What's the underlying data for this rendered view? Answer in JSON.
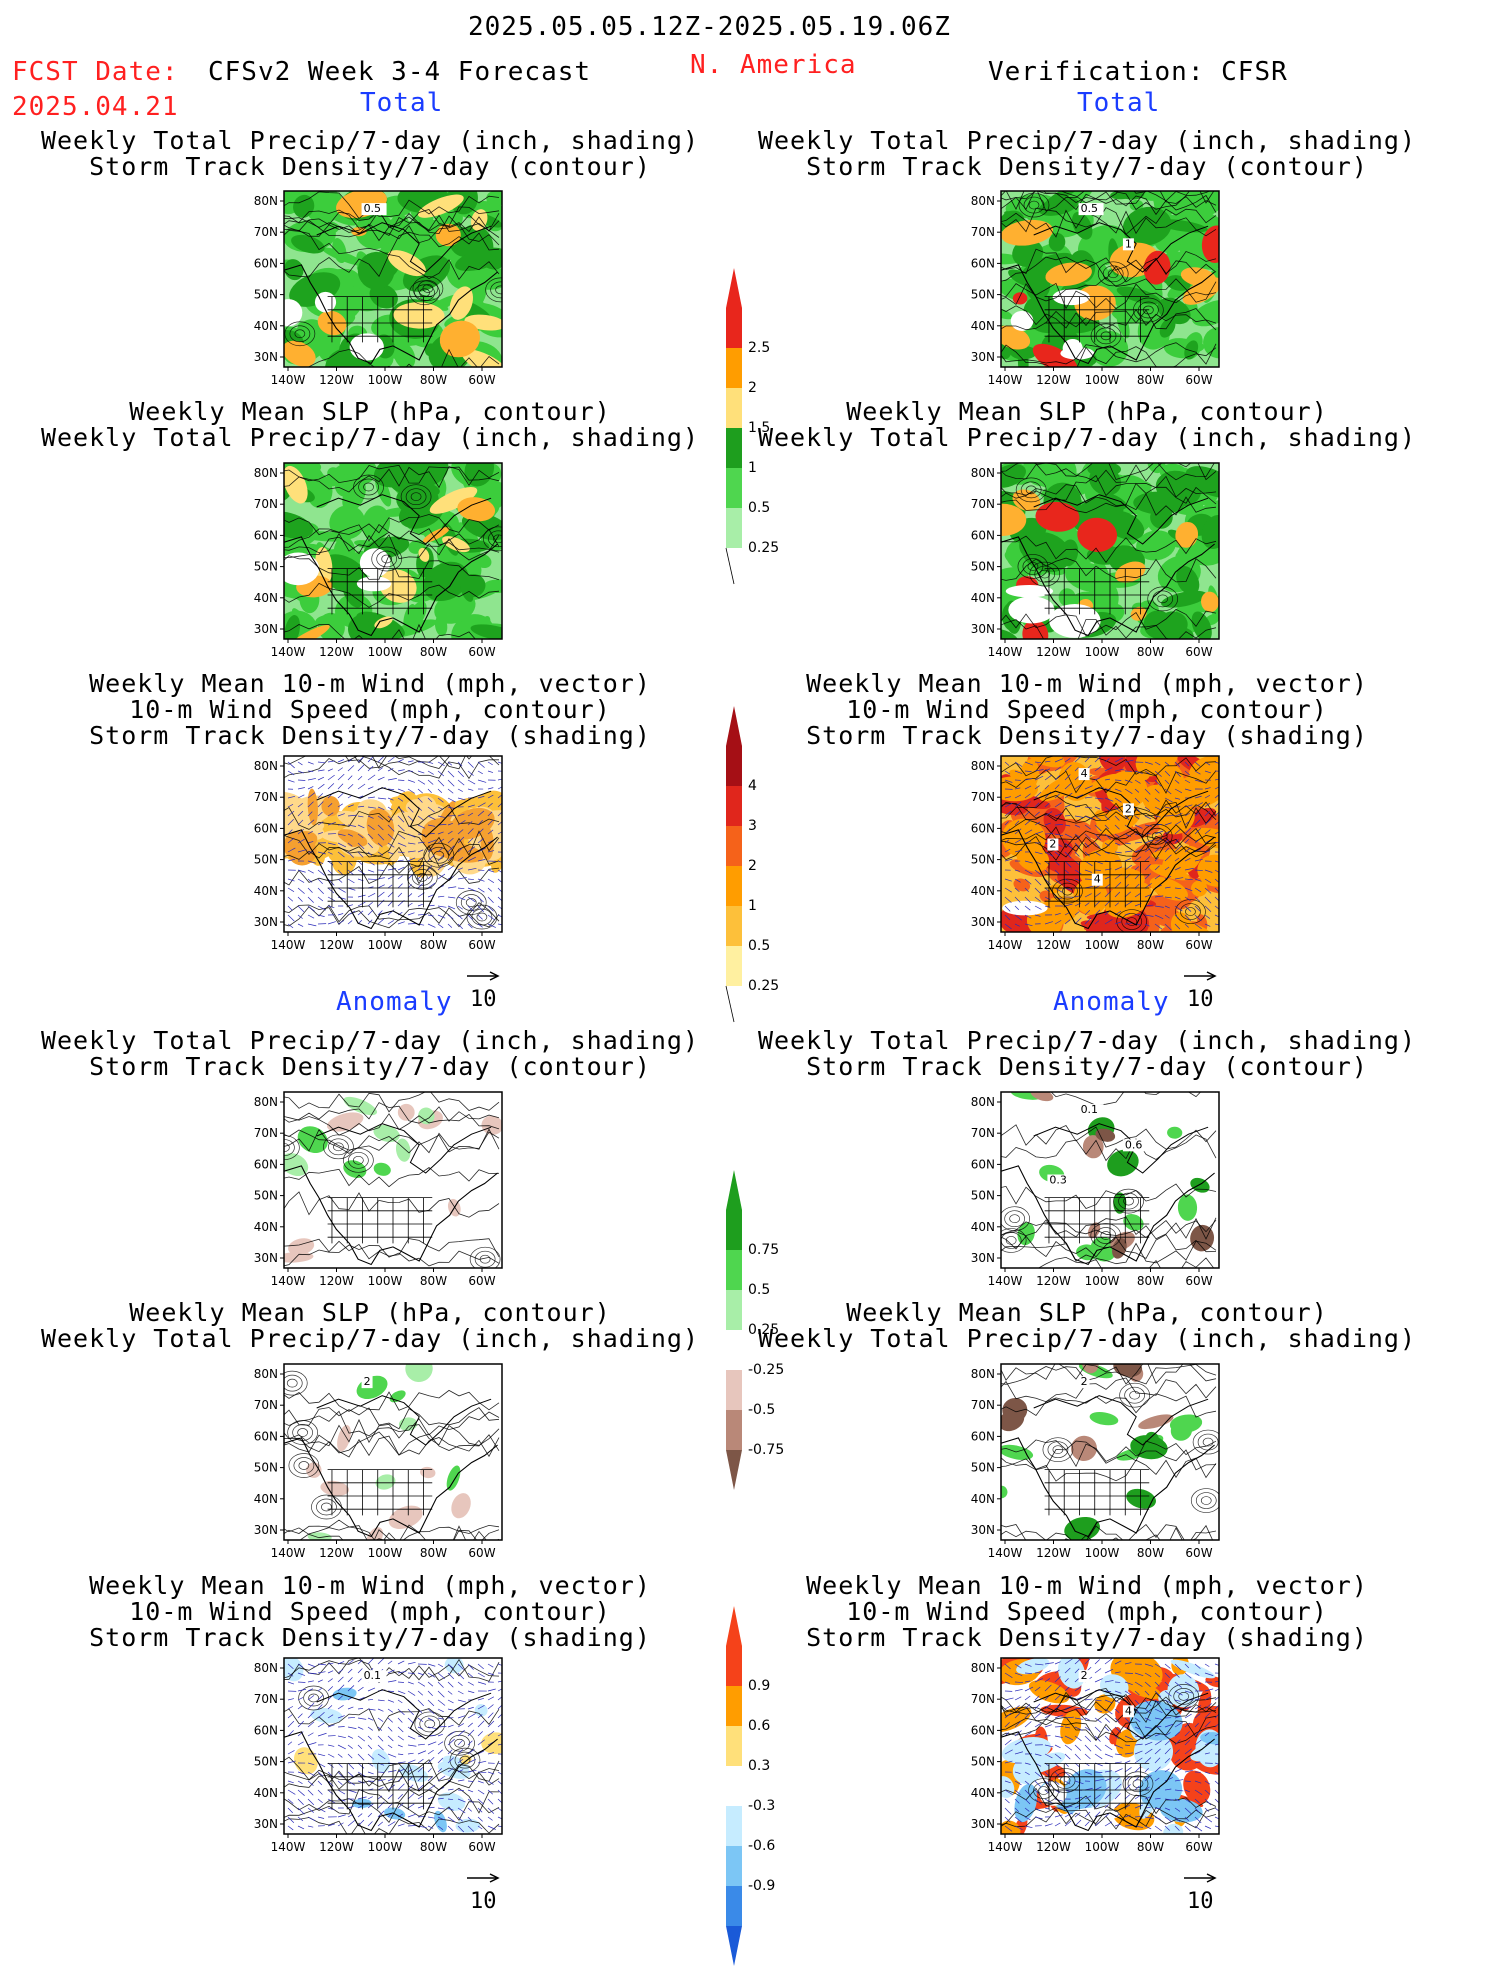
{
  "header": {
    "date_range": "2025.05.05.12Z-2025.05.19.06Z",
    "fcst_label": "FCST Date:",
    "fcst_date": "2025.04.21",
    "model": "CFSv2 Week 3-4 Forecast",
    "region": "N. America",
    "verification": "Verification: CFSR"
  },
  "sections": {
    "total": "Total",
    "anomaly": "Anomaly"
  },
  "titles": {
    "precip_storm": [
      "Weekly Total Precip/7-day (inch, shading)",
      "Storm Track Density/7-day (contour)"
    ],
    "slp_precip": [
      "Weekly Mean SLP (hPa, contour)",
      "Weekly Total Precip/7-day (inch, shading)"
    ],
    "wind_storm": [
      "Weekly Mean 10-m Wind (mph, vector)",
      "10-m Wind Speed (mph, contour)",
      "Storm Track Density/7-day (shading)"
    ]
  },
  "axes": {
    "lat_ticks": [
      "80N",
      "70N",
      "60N",
      "50N",
      "40N",
      "30N"
    ],
    "lon_ticks": [
      "140W",
      "120W",
      "100W",
      "80W",
      "60W"
    ]
  },
  "vector_reference": "10",
  "map_labels": {
    "fc_total_precip": [
      "0.5"
    ],
    "ob_total_precip": [
      "0.5",
      "1"
    ],
    "ob_total_wind": [
      "4",
      "2",
      "2",
      "4"
    ],
    "fc_anom_wind": [
      "0.1"
    ],
    "ob_anom_precip": [
      "0.1",
      "0.6",
      "0.3"
    ],
    "fc_anom_slp": [
      "2"
    ],
    "ob_anom_slp": [
      "2"
    ],
    "ob_anom_wind": [
      "2",
      "4"
    ]
  },
  "colorbars": {
    "total_precip": {
      "labels": [
        "2.5",
        "2",
        "1.5",
        "1",
        "0.5",
        "0.25"
      ],
      "colors": [
        "#e8261c",
        "#ff9d00",
        "#ffe07a",
        "#1e9e1e",
        "#4fd64f",
        "#a8eea8"
      ]
    },
    "total_storm": {
      "labels": [
        "4",
        "3",
        "2",
        "1",
        "0.5",
        "0.25"
      ],
      "colors": [
        "#a50f15",
        "#e0261c",
        "#f5621a",
        "#ff9d00",
        "#fdc03a",
        "#fff0a0"
      ]
    },
    "anom_precip": {
      "labels": [
        "0.75",
        "0.5",
        "0.25",
        "-0.25",
        "-0.5",
        "-0.75"
      ],
      "colors": [
        "#1e9e1e",
        "#4fd64f",
        "#a8eea8",
        "#ffffff",
        "#e7c6bd",
        "#b98878",
        "#7d5647"
      ]
    },
    "anom_storm": {
      "labels": [
        "0.9",
        "0.6",
        "0.3",
        "-0.3",
        "-0.6",
        "-0.9"
      ],
      "colors": [
        "#f5421a",
        "#ff9d00",
        "#ffe07a",
        "#ffffff",
        "#c6ecff",
        "#7cc6f5",
        "#3a8ae8",
        "#1a5ad8"
      ]
    }
  }
}
